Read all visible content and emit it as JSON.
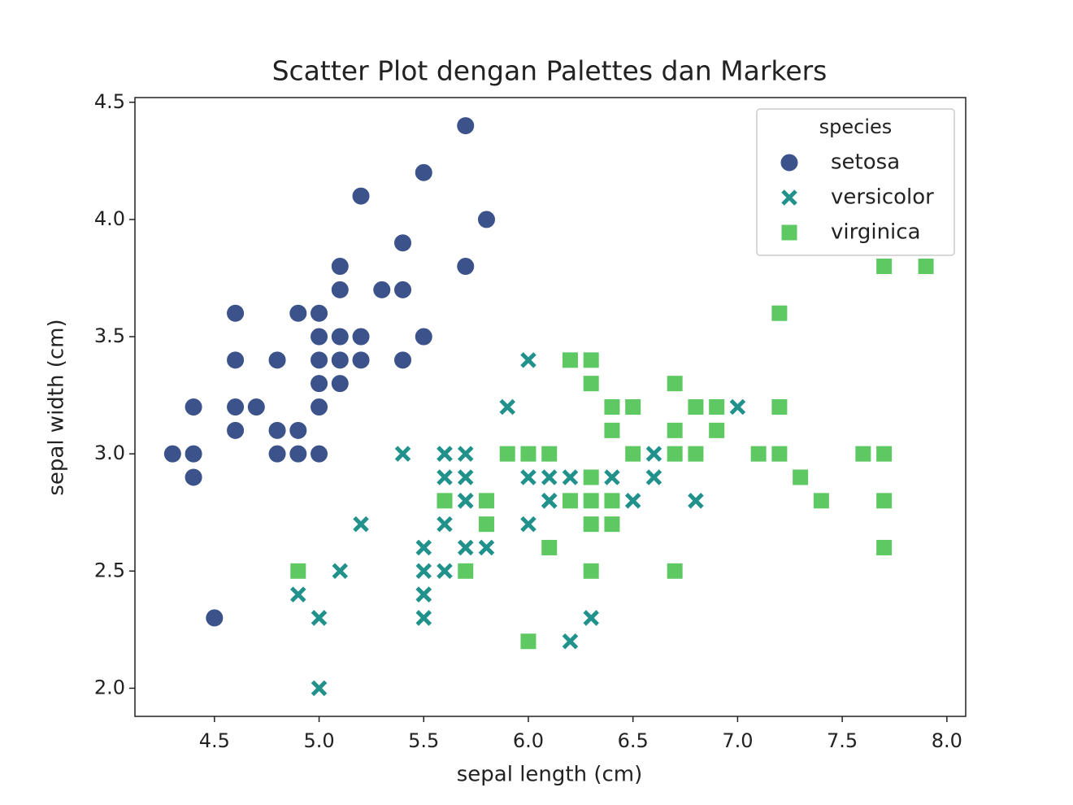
{
  "chart_data": {
    "type": "scatter",
    "title": "Scatter Plot dengan Palettes dan Markers",
    "x_label": "sepal length (cm)",
    "y_label": "sepal width (cm)",
    "xlim": [
      4.12,
      8.09
    ],
    "ylim": [
      1.88,
      4.52
    ],
    "xticks": [
      4.5,
      {
        "value": 5,
        "label": "5.0"
      },
      5.5,
      {
        "value": 6,
        "label": "6.0"
      },
      6.5,
      {
        "value": 7,
        "label": "7.0"
      },
      7.5,
      {
        "value": 8,
        "label": "8.0"
      }
    ],
    "yticks": [
      {
        "value": 2,
        "label": "2.0"
      },
      2.5,
      {
        "value": 3,
        "label": "3.0"
      },
      3.5,
      {
        "value": 4,
        "label": "4.0"
      },
      4.5
    ],
    "legend_title": "species",
    "legend_loc": "upper right",
    "series": [
      {
        "name": "setosa",
        "color": "#3b528b",
        "marker": "circle",
        "x": [
          5.1,
          4.9,
          4.7,
          4.6,
          5.0,
          5.4,
          4.6,
          5.0,
          4.4,
          4.9,
          5.4,
          4.8,
          4.8,
          4.3,
          5.8,
          5.7,
          5.4,
          5.1,
          5.7,
          5.1,
          5.4,
          5.1,
          4.6,
          5.1,
          4.8,
          5.0,
          5.0,
          5.2,
          5.2,
          4.7,
          4.8,
          5.4,
          5.2,
          5.5,
          4.9,
          5.0,
          5.5,
          4.9,
          4.4,
          5.1,
          5.0,
          4.5,
          4.4,
          5.0,
          5.1,
          4.8,
          5.1,
          4.6,
          5.3,
          5.0
        ],
        "values": [
          3.5,
          3.0,
          3.2,
          3.1,
          3.6,
          3.9,
          3.4,
          3.4,
          2.9,
          3.1,
          3.7,
          3.4,
          3.0,
          3.0,
          4.0,
          4.4,
          3.9,
          3.5,
          3.8,
          3.8,
          3.4,
          3.7,
          3.6,
          3.3,
          3.4,
          3.0,
          3.4,
          3.5,
          3.4,
          3.2,
          3.1,
          3.4,
          4.1,
          4.2,
          3.1,
          3.2,
          3.5,
          3.6,
          3.0,
          3.4,
          3.5,
          2.3,
          3.2,
          3.5,
          3.8,
          3.0,
          3.8,
          3.2,
          3.7,
          3.3
        ]
      },
      {
        "name": "versicolor",
        "color": "#21918c",
        "marker": "x",
        "x": [
          7.0,
          6.4,
          6.9,
          5.5,
          6.5,
          5.7,
          6.3,
          4.9,
          6.6,
          5.2,
          5.0,
          5.9,
          6.0,
          6.1,
          5.6,
          6.7,
          5.6,
          5.8,
          6.2,
          5.6,
          5.9,
          6.1,
          6.3,
          6.1,
          6.4,
          6.6,
          6.8,
          6.7,
          6.0,
          5.7,
          5.5,
          5.5,
          5.8,
          6.0,
          5.4,
          6.0,
          6.7,
          6.3,
          5.6,
          5.5,
          5.5,
          6.1,
          5.8,
          5.0,
          5.6,
          5.7,
          5.7,
          6.2,
          5.1,
          5.7
        ],
        "values": [
          3.2,
          3.2,
          3.1,
          2.3,
          2.8,
          2.8,
          3.3,
          2.4,
          2.9,
          2.7,
          2.0,
          3.0,
          2.2,
          2.9,
          2.9,
          3.1,
          3.0,
          2.7,
          2.2,
          2.5,
          3.2,
          2.8,
          2.5,
          2.8,
          2.9,
          3.0,
          2.8,
          3.0,
          2.9,
          2.6,
          2.4,
          2.4,
          2.7,
          2.7,
          3.0,
          3.4,
          3.1,
          2.3,
          3.0,
          2.5,
          2.6,
          3.0,
          2.6,
          2.3,
          2.7,
          3.0,
          2.9,
          2.9,
          2.5,
          2.8
        ]
      },
      {
        "name": "virginica",
        "color": "#5ec962",
        "marker": "square",
        "x": [
          6.3,
          5.8,
          7.1,
          6.3,
          6.5,
          7.6,
          4.9,
          7.3,
          6.7,
          7.2,
          6.5,
          6.4,
          6.8,
          5.7,
          5.8,
          6.4,
          6.5,
          7.7,
          7.7,
          6.0,
          6.9,
          5.6,
          7.7,
          6.3,
          6.7,
          7.2,
          6.2,
          6.1,
          6.4,
          7.2,
          7.4,
          7.9,
          6.4,
          6.3,
          6.1,
          7.7,
          6.3,
          6.4,
          6.0,
          6.9,
          6.7,
          6.9,
          5.8,
          6.8,
          6.7,
          6.7,
          6.3,
          6.5,
          6.2,
          5.9
        ],
        "values": [
          3.3,
          2.7,
          3.0,
          2.9,
          3.0,
          3.0,
          2.5,
          2.9,
          2.5,
          3.6,
          3.2,
          2.7,
          3.0,
          2.5,
          2.8,
          3.2,
          3.0,
          3.8,
          2.6,
          2.2,
          3.2,
          2.8,
          2.8,
          2.7,
          3.3,
          3.2,
          2.8,
          3.0,
          2.8,
          3.0,
          2.8,
          3.8,
          2.8,
          2.8,
          2.6,
          3.0,
          3.4,
          3.1,
          3.0,
          3.1,
          3.1,
          3.1,
          2.7,
          3.2,
          3.3,
          3.0,
          2.5,
          3.0,
          3.4,
          3.0
        ]
      }
    ]
  }
}
